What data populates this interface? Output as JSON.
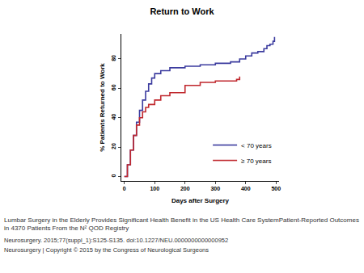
{
  "chart_data": {
    "type": "line",
    "title": "Return to Work",
    "x_label": "Days after Surgery",
    "y_label": "% Patients Returned to Work",
    "line_style": "step",
    "legend": "lower right",
    "grid": false,
    "xlim": [
      -10,
      510
    ],
    "xticks": [
      0,
      100,
      200,
      300,
      400,
      500
    ],
    "ylim": [
      -3,
      97
    ],
    "yticks": [
      0,
      20,
      40,
      60,
      80
    ],
    "series": [
      {
        "name": "< 70 years",
        "color": "#3b3b9e",
        "x": [
          0,
          10,
          20,
          30,
          40,
          50,
          60,
          70,
          80,
          90,
          100,
          120,
          150,
          200,
          250,
          300,
          350,
          380,
          400,
          420,
          440,
          460,
          470,
          480,
          490,
          495
        ],
        "values": [
          0,
          8,
          18,
          28,
          37,
          45,
          52,
          58,
          63,
          67,
          70,
          72,
          74,
          75,
          76,
          77,
          78,
          80,
          82,
          84,
          85,
          87,
          89,
          90,
          92,
          95
        ]
      },
      {
        "name": "≥ 70 years",
        "color": "#c0272d",
        "x": [
          0,
          10,
          20,
          30,
          40,
          50,
          60,
          70,
          80,
          100,
          120,
          150,
          180,
          200,
          250,
          300,
          350,
          370,
          380
        ],
        "values": [
          0,
          8,
          18,
          28,
          35,
          40,
          44,
          47,
          49,
          52,
          55,
          57,
          57,
          62,
          64,
          65,
          65,
          66,
          68
        ]
      }
    ]
  },
  "caption": [
    "Lumbar Surgery in the Elderly Provides Significant Health Benefit in the US Health Care SystemPatient-Reported Outcomes in 4370 Patients From the N² QOD Registry",
    "Neurosurgery. 2015;77(suppl_1):S125-S135. doi:10.1227/NEU.0000000000000952",
    "Neurosurgery | Copyright © 2015 by the Congress of Neurological Surgeons"
  ]
}
